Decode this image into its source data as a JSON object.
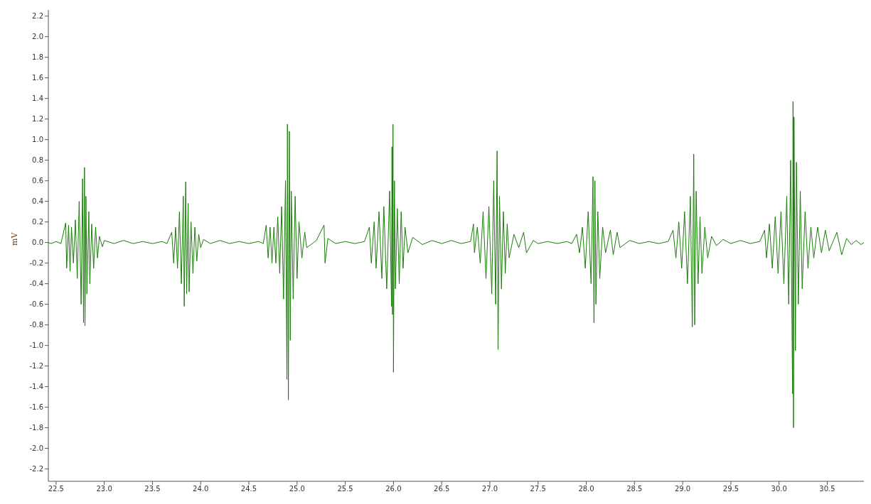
{
  "chart_data": {
    "type": "line",
    "ylabel": "mV",
    "color": "#1a7d0a",
    "marker": "none",
    "xlim": [
      22.42,
      30.88
    ],
    "ylim": [
      -2.32,
      2.26
    ],
    "xticks": [
      22.5,
      {
        "value": 23,
        "label": "23.0"
      },
      23.5,
      {
        "value": 24,
        "label": "24.0"
      },
      24.5,
      {
        "value": 25,
        "label": "25.0"
      },
      25.5,
      {
        "value": 26,
        "label": "26.0"
      },
      26.5,
      {
        "value": 27,
        "label": "27.0"
      },
      27.5,
      {
        "value": 28,
        "label": "28.0"
      },
      28.5,
      {
        "value": 29,
        "label": "29.0"
      },
      29.5,
      {
        "value": 30,
        "label": "30.0"
      },
      30.5
    ],
    "yticks": [
      -2.2,
      {
        "value": -2,
        "label": "-2.0"
      },
      -1.8,
      -1.6,
      -1.4,
      -1.2,
      {
        "value": -1,
        "label": "-1.0"
      },
      -0.8,
      -0.6,
      -0.4,
      -0.2,
      {
        "value": 0,
        "label": "0.0"
      },
      0.2,
      0.4,
      0.6,
      0.8,
      {
        "value": 1,
        "label": "1.0"
      },
      1.2,
      1.4,
      1.6,
      1.8,
      {
        "value": 2,
        "label": "2.0"
      },
      2.2
    ],
    "x": [
      22.42,
      22.45,
      22.5,
      22.55,
      22.6,
      22.61,
      22.63,
      22.645,
      22.66,
      22.68,
      22.7,
      22.72,
      22.74,
      22.76,
      22.775,
      22.785,
      22.795,
      22.8,
      22.81,
      22.82,
      22.84,
      22.85,
      22.87,
      22.89,
      22.91,
      22.93,
      22.95,
      22.98,
      23.0,
      23.1,
      23.2,
      23.3,
      23.4,
      23.5,
      23.6,
      23.65,
      23.7,
      23.72,
      23.74,
      23.76,
      23.78,
      23.8,
      23.82,
      23.83,
      23.845,
      23.855,
      23.87,
      23.88,
      23.9,
      23.92,
      23.94,
      23.96,
      23.98,
      24.0,
      24.03,
      24.1,
      24.2,
      24.3,
      24.4,
      24.5,
      24.6,
      24.65,
      24.68,
      24.7,
      24.72,
      24.74,
      24.76,
      24.78,
      24.8,
      24.82,
      24.84,
      24.86,
      24.88,
      24.895,
      24.9,
      24.91,
      24.92,
      24.93,
      24.94,
      24.96,
      24.98,
      25.0,
      25.02,
      25.05,
      25.08,
      25.1,
      25.2,
      25.28,
      25.29,
      25.32,
      25.4,
      25.5,
      25.6,
      25.7,
      25.75,
      25.77,
      25.8,
      25.82,
      25.85,
      25.88,
      25.9,
      25.93,
      25.96,
      25.98,
      25.985,
      25.99,
      25.995,
      26.0,
      26.01,
      26.02,
      26.04,
      26.06,
      26.08,
      26.1,
      26.12,
      26.15,
      26.2,
      26.3,
      26.4,
      26.5,
      26.6,
      26.7,
      26.8,
      26.83,
      26.84,
      26.87,
      26.9,
      26.93,
      26.96,
      26.99,
      27.02,
      27.04,
      27.06,
      27.075,
      27.085,
      27.1,
      27.12,
      27.14,
      27.16,
      27.18,
      27.2,
      27.25,
      27.3,
      27.35,
      27.38,
      27.45,
      27.5,
      27.6,
      27.7,
      27.8,
      27.85,
      27.9,
      27.93,
      27.96,
      27.99,
      28.02,
      28.05,
      28.07,
      28.08,
      28.09,
      28.1,
      28.12,
      28.14,
      28.17,
      28.2,
      28.25,
      28.28,
      28.32,
      28.35,
      28.45,
      28.55,
      28.65,
      28.75,
      28.85,
      28.9,
      28.93,
      28.96,
      28.99,
      29.02,
      29.05,
      29.08,
      29.1,
      29.115,
      29.125,
      29.14,
      29.16,
      29.18,
      29.2,
      29.23,
      29.26,
      29.3,
      29.35,
      29.42,
      29.5,
      29.6,
      29.7,
      29.8,
      29.85,
      29.87,
      29.9,
      29.93,
      29.96,
      29.99,
      30.02,
      30.05,
      30.08,
      30.1,
      30.12,
      30.14,
      30.145,
      30.15,
      30.155,
      30.17,
      30.18,
      30.2,
      30.22,
      30.24,
      30.27,
      30.3,
      30.33,
      30.36,
      30.4,
      30.44,
      30.48,
      30.52,
      30.6,
      30.65,
      30.7,
      30.75,
      30.8,
      30.85,
      30.88
    ],
    "values": [
      0,
      -0.01,
      0.01,
      -0.01,
      0.19,
      -0.25,
      0.17,
      -0.28,
      0.15,
      -0.2,
      0.22,
      -0.35,
      0.4,
      -0.6,
      0.62,
      -0.78,
      0.73,
      -0.81,
      0.45,
      -0.5,
      0.3,
      -0.4,
      0.18,
      -0.25,
      0.15,
      -0.15,
      0.06,
      -0.04,
      0.02,
      -0.01,
      0.02,
      -0.01,
      0.01,
      -0.01,
      0.01,
      -0.01,
      0.1,
      -0.2,
      0.15,
      -0.25,
      0.3,
      -0.4,
      0.45,
      -0.62,
      0.59,
      -0.5,
      0.38,
      -0.48,
      0.2,
      -0.3,
      0.15,
      -0.18,
      0.08,
      -0.05,
      0.03,
      -0.01,
      0.02,
      -0.01,
      0.01,
      -0.01,
      0.01,
      -0.01,
      0.17,
      -0.15,
      0.15,
      -0.2,
      0.15,
      -0.2,
      0.25,
      -0.3,
      0.35,
      -0.55,
      0.6,
      -1.33,
      1.15,
      -1.53,
      1.08,
      -0.95,
      0.5,
      -0.55,
      0.45,
      -0.35,
      0.2,
      -0.15,
      0.1,
      -0.05,
      0.02,
      0.17,
      -0.2,
      0.04,
      -0.01,
      0.01,
      -0.01,
      0.01,
      0.15,
      -0.2,
      0.2,
      -0.25,
      0.3,
      -0.35,
      0.35,
      -0.45,
      0.5,
      -0.62,
      0.93,
      -0.7,
      1.15,
      -1.26,
      0.6,
      -0.45,
      0.33,
      -0.4,
      0.3,
      -0.25,
      0.15,
      -0.1,
      0.05,
      -0.02,
      0.02,
      -0.01,
      0.02,
      -0.01,
      0.01,
      0.18,
      -0.1,
      0.15,
      -0.2,
      0.3,
      -0.35,
      0.35,
      -0.5,
      0.6,
      -0.6,
      0.89,
      -1.04,
      0.45,
      -0.45,
      0.3,
      -0.3,
      0.18,
      -0.15,
      0.08,
      -0.05,
      0.1,
      -0.1,
      0.02,
      -0.01,
      0.01,
      -0.01,
      0.01,
      -0.01,
      0.08,
      -0.1,
      0.15,
      -0.25,
      0.3,
      -0.4,
      0.64,
      -0.78,
      0.6,
      -0.6,
      0.3,
      -0.35,
      0.15,
      -0.1,
      0.12,
      -0.12,
      0.1,
      -0.05,
      0.02,
      -0.01,
      0.01,
      -0.01,
      0.01,
      0.12,
      -0.15,
      0.2,
      -0.25,
      0.3,
      -0.4,
      0.45,
      -0.82,
      0.86,
      -0.8,
      0.5,
      -0.4,
      0.25,
      -0.3,
      0.15,
      -0.15,
      0.06,
      -0.03,
      0.03,
      -0.01,
      0.02,
      -0.01,
      0.01,
      0.12,
      -0.15,
      0.18,
      -0.25,
      0.25,
      -0.3,
      0.3,
      -0.4,
      0.45,
      -0.6,
      0.8,
      -1.47,
      1.37,
      -1.8,
      1.22,
      -1.05,
      0.78,
      -0.6,
      0.5,
      -0.45,
      0.3,
      -0.25,
      0.15,
      -0.15,
      0.15,
      -0.1,
      0.12,
      -0.08,
      0.1,
      -0.12,
      0.04,
      -0.02,
      0.02,
      -0.02,
      0
    ]
  }
}
